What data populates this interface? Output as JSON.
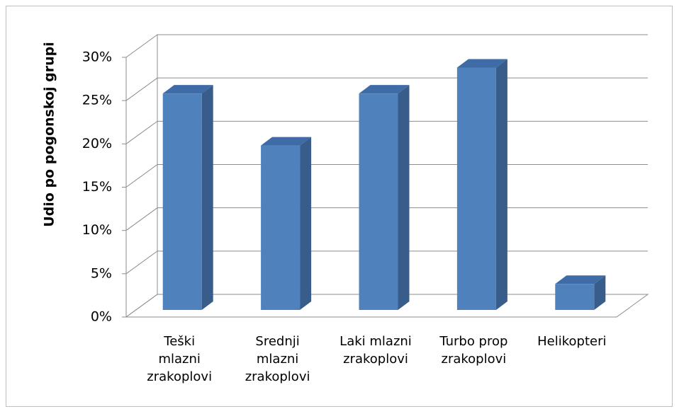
{
  "chart_data": {
    "type": "bar3d",
    "y_axis_label": "Udio po pogonskoj grupi",
    "categories": [
      "Teški\nmlazni\nzrakoplovi",
      "Srednji\nmlazni\nzrakoplovi",
      "Laki mlazni\nzrakoplovi",
      "Turbo prop\nzrakoplovi",
      "Helikopteri"
    ],
    "values": [
      25,
      19,
      25,
      28,
      3
    ],
    "color": "#4f81bd",
    "ylim": [
      0,
      30
    ],
    "yticks": [
      {
        "value": 0,
        "label": "0%"
      },
      {
        "value": 5,
        "label": "5%"
      },
      {
        "value": 10,
        "label": "10%"
      },
      {
        "value": 15,
        "label": "15%"
      },
      {
        "value": 20,
        "label": "20%"
      },
      {
        "value": 25,
        "label": "25%"
      },
      {
        "value": 30,
        "label": "30%"
      }
    ],
    "grid": true
  }
}
